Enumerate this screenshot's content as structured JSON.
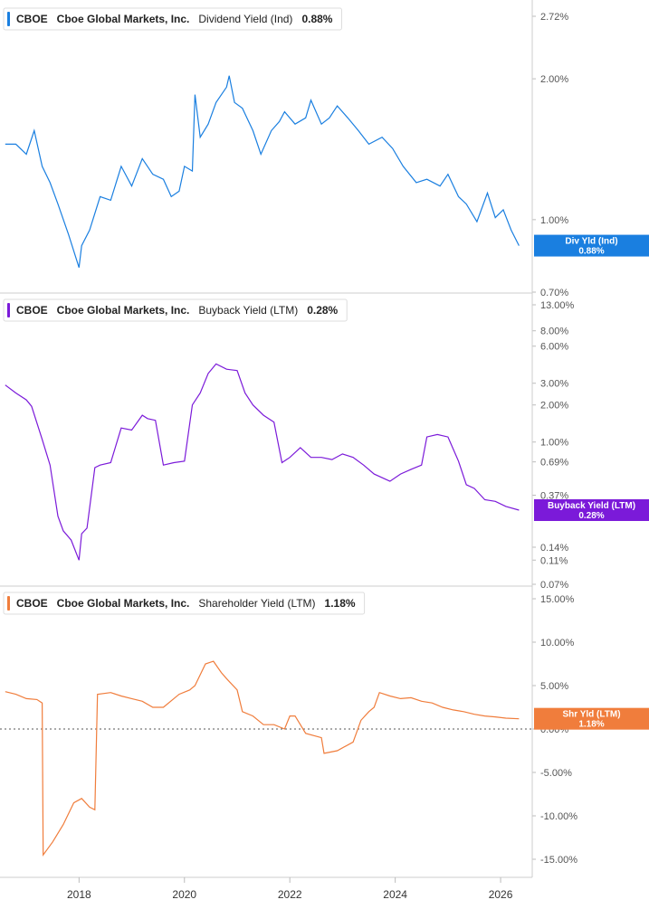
{
  "chart_data": [
    {
      "type": "line",
      "ticker": "CBOE",
      "company": "Cboe Global Markets, Inc.",
      "metric": "Dividend Yield (Ind)",
      "current_value": "0.88%",
      "badge": {
        "label": "Div Yld (Ind)",
        "value": "0.88%"
      },
      "color": "#1a7fe0",
      "y_scale": "log",
      "ylim": [
        0.7,
        2.72
      ],
      "y_ticks": [
        "2.72%",
        "2.00%",
        "1.00%",
        "0.70%"
      ],
      "y_tick_values": [
        2.72,
        2.0,
        1.0,
        0.7
      ],
      "hidden_tick": {
        "label": "0.88%",
        "value": 0.88
      },
      "series": [
        {
          "x": [
            2016.6,
            2016.8,
            2017.0,
            2017.15,
            2017.3,
            2017.45,
            2017.6,
            2017.8,
            2018.0,
            2018.05,
            2018.2,
            2018.4,
            2018.6,
            2018.8,
            2019.0,
            2019.2,
            2019.4,
            2019.6,
            2019.75,
            2019.9,
            2020.0,
            2020.15,
            2020.2,
            2020.3,
            2020.45,
            2020.6,
            2020.8,
            2020.85,
            2020.95,
            2021.1,
            2021.3,
            2021.45,
            2021.65,
            2021.8,
            2021.9,
            2022.1,
            2022.3,
            2022.4,
            2022.6,
            2022.75,
            2022.9,
            2023.1,
            2023.3,
            2023.5,
            2023.75,
            2023.95,
            2024.15,
            2024.4,
            2024.6,
            2024.85,
            2025.0,
            2025.2,
            2025.35,
            2025.55,
            2025.75,
            2025.9,
            2026.05,
            2026.2,
            2026.35
          ],
          "y": [
            1.45,
            1.45,
            1.38,
            1.55,
            1.3,
            1.2,
            1.08,
            0.93,
            0.79,
            0.88,
            0.95,
            1.12,
            1.1,
            1.3,
            1.18,
            1.35,
            1.25,
            1.22,
            1.12,
            1.15,
            1.3,
            1.27,
            1.85,
            1.5,
            1.6,
            1.78,
            1.92,
            2.03,
            1.78,
            1.73,
            1.55,
            1.38,
            1.55,
            1.62,
            1.7,
            1.6,
            1.65,
            1.8,
            1.6,
            1.65,
            1.75,
            1.65,
            1.55,
            1.45,
            1.5,
            1.42,
            1.3,
            1.2,
            1.22,
            1.18,
            1.25,
            1.12,
            1.08,
            0.99,
            1.14,
            1.01,
            1.05,
            0.95,
            0.88
          ]
        }
      ]
    },
    {
      "type": "line",
      "ticker": "CBOE",
      "company": "Cboe Global Markets, Inc.",
      "metric": "Buyback Yield (LTM)",
      "current_value": "0.28%",
      "badge": {
        "label": "Buyback Yield (LTM)",
        "value": "0.28%"
      },
      "color": "#7b1ad9",
      "y_scale": "log",
      "ylim": [
        0.07,
        13.0
      ],
      "y_ticks": [
        "13.00%",
        "8.00%",
        "6.00%",
        "3.00%",
        "2.00%",
        "1.00%",
        "0.69%",
        "0.37%",
        "0.14%",
        "0.11%",
        "0.07%"
      ],
      "y_tick_values": [
        13.0,
        8.0,
        6.0,
        3.0,
        2.0,
        1.0,
        0.69,
        0.37,
        0.14,
        0.11,
        0.07
      ],
      "series": [
        {
          "x": [
            2016.6,
            2016.8,
            2017.0,
            2017.1,
            2017.3,
            2017.45,
            2017.6,
            2017.7,
            2017.85,
            2018.0,
            2018.05,
            2018.15,
            2018.3,
            2018.4,
            2018.6,
            2018.8,
            2019.0,
            2019.2,
            2019.3,
            2019.45,
            2019.6,
            2019.8,
            2020.0,
            2020.15,
            2020.3,
            2020.45,
            2020.6,
            2020.8,
            2021.0,
            2021.15,
            2021.3,
            2021.5,
            2021.7,
            2021.85,
            2022.0,
            2022.2,
            2022.4,
            2022.6,
            2022.8,
            2023.0,
            2023.2,
            2023.4,
            2023.6,
            2023.9,
            2024.1,
            2024.3,
            2024.5,
            2024.6,
            2024.8,
            2025.0,
            2025.2,
            2025.35,
            2025.5,
            2025.7,
            2025.9,
            2026.1,
            2026.35
          ],
          "y": [
            2.9,
            2.5,
            2.2,
            1.95,
            1.05,
            0.65,
            0.25,
            0.19,
            0.16,
            0.11,
            0.18,
            0.2,
            0.62,
            0.65,
            0.68,
            1.3,
            1.25,
            1.65,
            1.55,
            1.5,
            0.65,
            0.68,
            0.7,
            2.0,
            2.5,
            3.6,
            4.3,
            3.9,
            3.8,
            2.5,
            2.0,
            1.65,
            1.45,
            0.68,
            0.75,
            0.9,
            0.75,
            0.75,
            0.72,
            0.8,
            0.75,
            0.65,
            0.55,
            0.48,
            0.55,
            0.6,
            0.65,
            1.1,
            1.15,
            1.1,
            0.7,
            0.45,
            0.42,
            0.34,
            0.33,
            0.3,
            0.28
          ]
        }
      ]
    },
    {
      "type": "line",
      "ticker": "CBOE",
      "company": "Cboe Global Markets, Inc.",
      "metric": "Shareholder Yield (LTM)",
      "current_value": "1.18%",
      "badge": {
        "label": "Shr Yld (LTM)",
        "value": "1.18%"
      },
      "color": "#f07d3c",
      "y_scale": "linear",
      "ylim": [
        -15.0,
        15.0
      ],
      "y_ticks": [
        "15.00%",
        "10.00%",
        "5.00%",
        "0.00%",
        "-5.00%",
        "-10.00%",
        "-15.00%"
      ],
      "y_tick_values": [
        15.0,
        10.0,
        5.0,
        0.0,
        -5.0,
        -10.0,
        -15.0
      ],
      "zero_line": true,
      "series": [
        {
          "x": [
            2016.6,
            2016.8,
            2017.0,
            2017.2,
            2017.3,
            2017.32,
            2017.5,
            2017.7,
            2017.9,
            2018.05,
            2018.2,
            2018.3,
            2018.35,
            2018.6,
            2018.8,
            2019.0,
            2019.2,
            2019.4,
            2019.6,
            2019.9,
            2020.1,
            2020.2,
            2020.4,
            2020.55,
            2020.7,
            2020.8,
            2021.0,
            2021.1,
            2021.3,
            2021.5,
            2021.7,
            2021.9,
            2022.0,
            2022.1,
            2022.3,
            2022.6,
            2022.65,
            2022.9,
            2023.2,
            2023.35,
            2023.5,
            2023.6,
            2023.7,
            2023.9,
            2024.1,
            2024.3,
            2024.5,
            2024.7,
            2024.9,
            2025.1,
            2025.3,
            2025.5,
            2025.7,
            2025.9,
            2026.1,
            2026.35
          ],
          "y": [
            4.3,
            4.0,
            3.5,
            3.4,
            3.0,
            -14.5,
            -13.0,
            -11.0,
            -8.5,
            -8.0,
            -9.0,
            -9.3,
            4.0,
            4.2,
            3.8,
            3.5,
            3.2,
            2.5,
            2.5,
            4.0,
            4.5,
            5.0,
            7.5,
            7.8,
            6.5,
            5.8,
            4.5,
            2.0,
            1.5,
            0.5,
            0.5,
            0.0,
            1.5,
            1.5,
            -0.5,
            -1.0,
            -2.8,
            -2.5,
            -1.5,
            1.0,
            2.0,
            2.5,
            4.2,
            3.8,
            3.5,
            3.6,
            3.2,
            3.0,
            2.5,
            2.2,
            2.0,
            1.7,
            1.5,
            1.4,
            1.25,
            1.18
          ]
        }
      ]
    }
  ],
  "x_axis": {
    "range": [
      2016.5,
      2026.6
    ],
    "ticks": [
      "2018",
      "2020",
      "2022",
      "2024",
      "2026"
    ],
    "tick_values": [
      2018,
      2020,
      2022,
      2024,
      2026
    ]
  }
}
